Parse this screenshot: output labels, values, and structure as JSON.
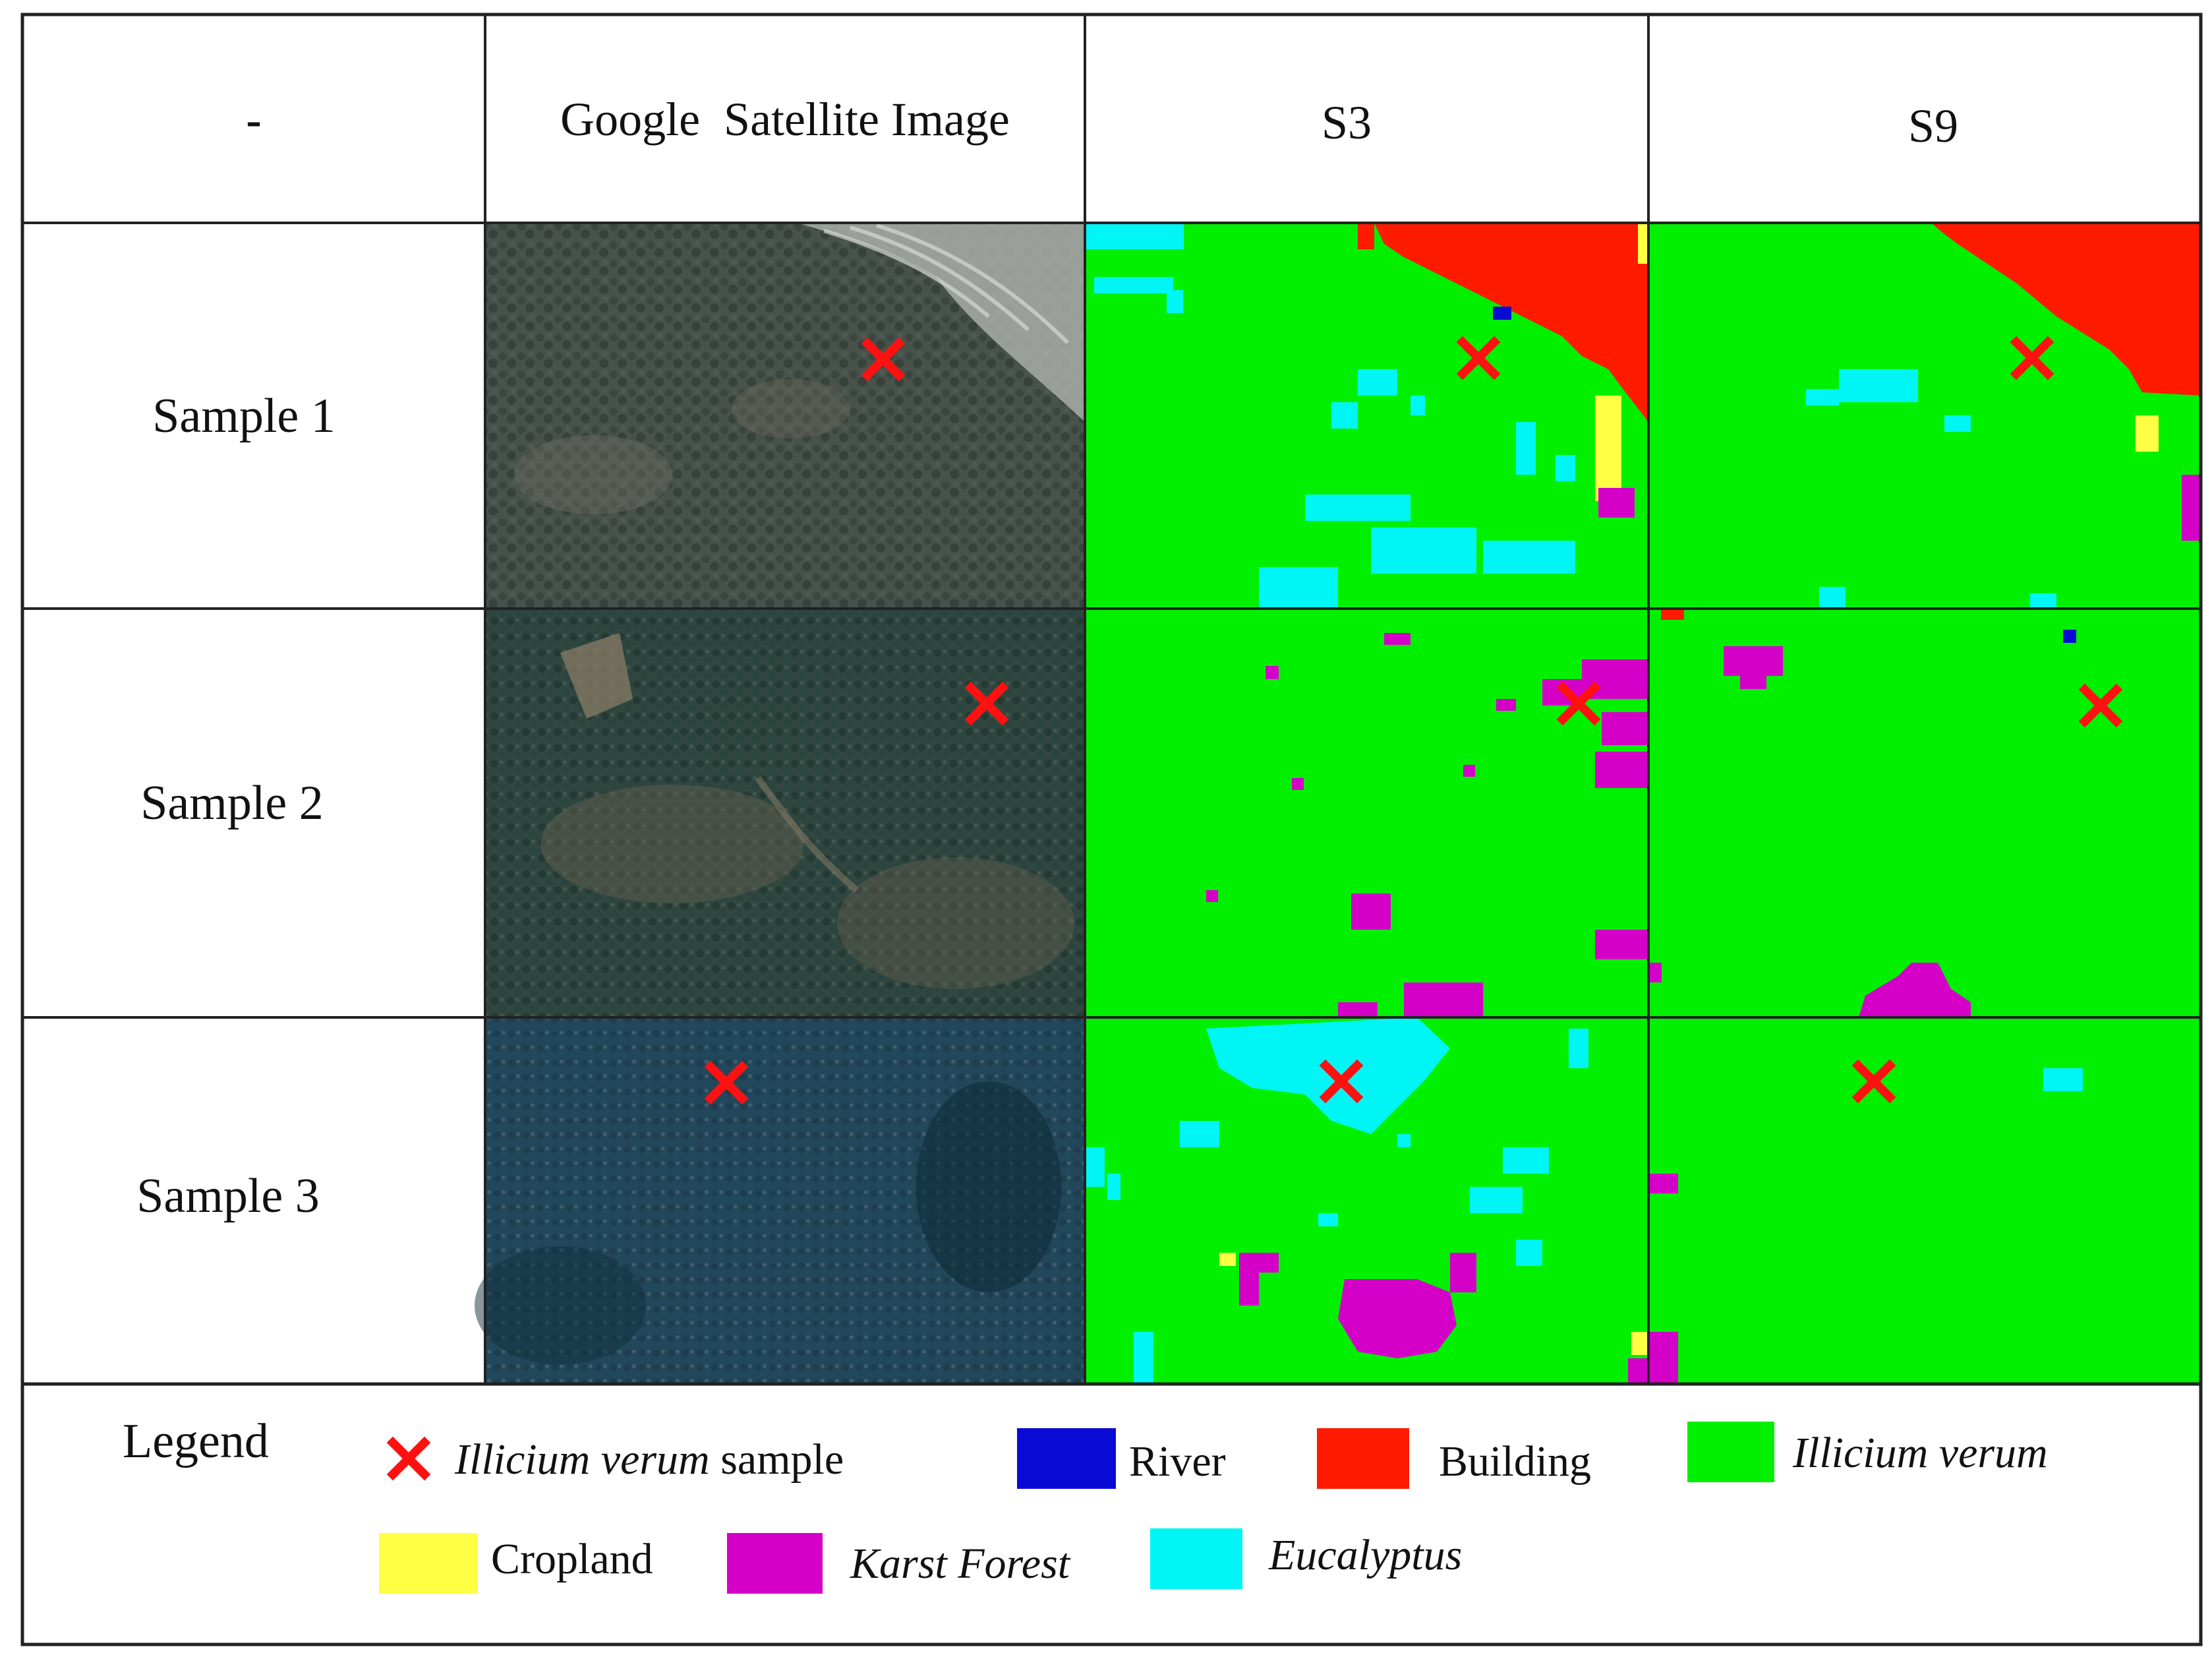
{
  "header": {
    "corner": "-",
    "columns": [
      "Google  Satellite Image",
      "S3",
      "S9"
    ]
  },
  "rows": [
    {
      "label": "Sample 1"
    },
    {
      "label": "Sample 2"
    },
    {
      "label": "Sample 3"
    }
  ],
  "legend": {
    "title": "Legend",
    "sample_marker": {
      "italic": "Illicium verum",
      "suffix": " sample",
      "color": "#ff1111",
      "icon": "red-x-marker"
    },
    "classes": [
      {
        "name": "River",
        "color": "#0a0ad6",
        "italic": false
      },
      {
        "name": "Building",
        "color": "#ff1a00",
        "italic": false
      },
      {
        "name": "Illicium verum",
        "color": "#00f000",
        "italic": true
      },
      {
        "name": "Cropland",
        "color": "#ffff44",
        "italic": false
      },
      {
        "name": "Karst Forest",
        "color": "#d400c8",
        "italic": true
      },
      {
        "name": "Eucalyptus",
        "color": "#00f5f5",
        "italic": true
      }
    ]
  },
  "colors": {
    "illicium": "#00f000",
    "building": "#ff1a00",
    "karst": "#d400c8",
    "eucalyptus": "#00f5f5",
    "cropland": "#ffff44",
    "river": "#0a0ad6",
    "marker": "#ff1111"
  }
}
